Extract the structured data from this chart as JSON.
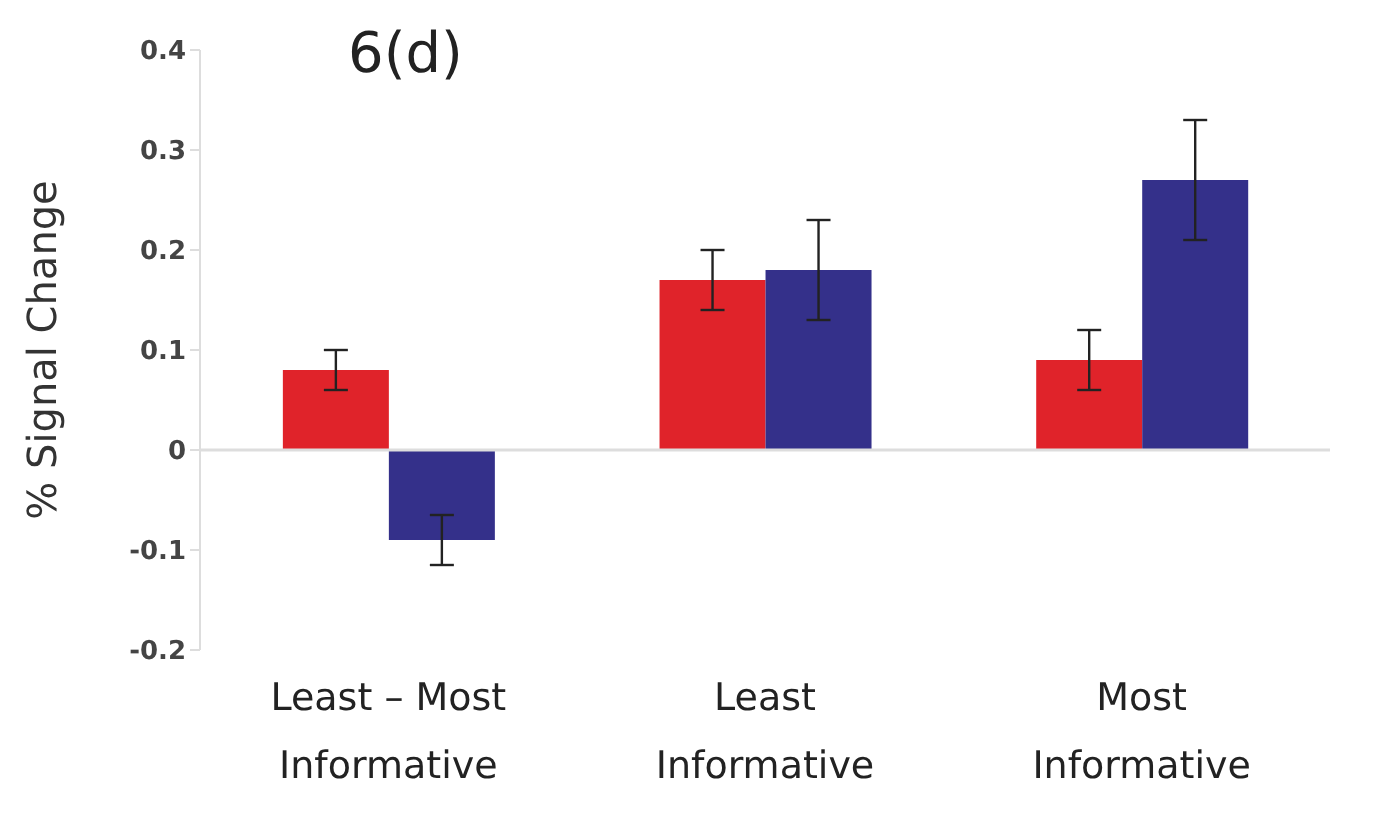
{
  "chart_data": {
    "type": "bar",
    "title": "6(d)",
    "ylabel": "% Signal Change",
    "categories": [
      "Least – Most Informative",
      "Least Informative",
      "Most Informative"
    ],
    "series": [
      {
        "color": "#e0232a",
        "values": [
          0.08,
          0.17,
          0.09
        ],
        "errors": [
          0.02,
          0.03,
          0.03
        ]
      },
      {
        "color": "#34308a",
        "values": [
          -0.09,
          0.18,
          0.27
        ],
        "errors": [
          0.025,
          0.05,
          0.06
        ]
      }
    ],
    "ylim": [
      -0.2,
      0.4
    ],
    "yticks": [
      -0.2,
      -0.1,
      0,
      0.1,
      0.2,
      0.3,
      0.4
    ],
    "ref_lines": [
      {
        "axis": "y",
        "value": 0,
        "color": "#dddddd"
      }
    ],
    "grid": false,
    "legend": false
  }
}
